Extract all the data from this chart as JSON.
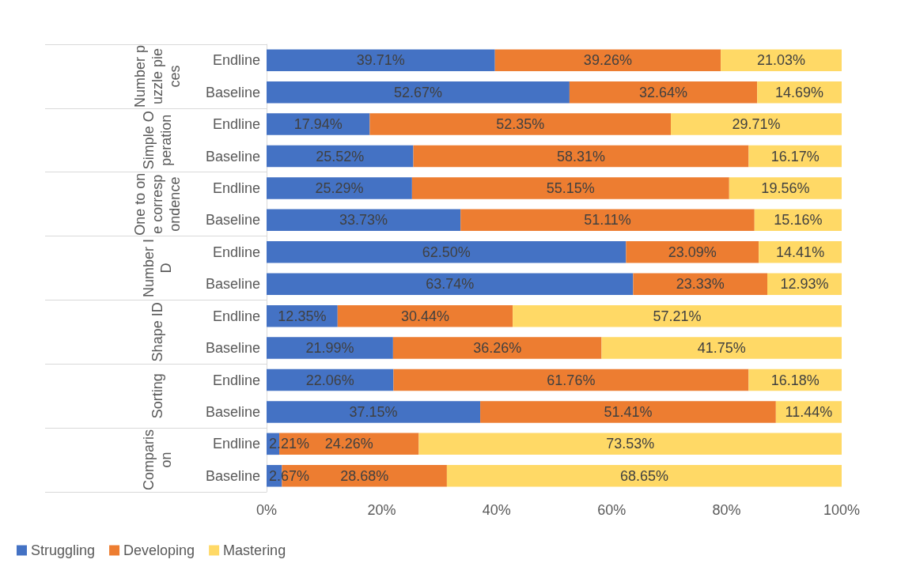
{
  "chart_data": {
    "type": "bar",
    "orientation": "horizontal",
    "stacked": true,
    "categories": [
      "Endline",
      "Baseline",
      "Endline",
      "Baseline",
      "Endline",
      "Baseline",
      "Endline",
      "Baseline",
      "Endline",
      "Baseline",
      "Endline",
      "Baseline",
      "Endline",
      "Baseline"
    ],
    "annotations": [
      "Number puzzle pieces",
      "Simple Operation",
      "One to one correspondence",
      "Number ID",
      "Shape ID",
      "Sorting",
      "Comparison"
    ],
    "series": [
      {
        "name": "Struggling",
        "color": "#4472c4",
        "values": [
          39.71,
          52.67,
          17.94,
          25.52,
          25.29,
          33.73,
          62.5,
          63.74,
          12.35,
          21.99,
          22.06,
          37.15,
          2.21,
          2.67
        ],
        "value_labels": [
          "39.71%",
          "52.67%",
          "17.94%",
          "25.52%",
          "25.29%",
          "33.73%",
          "62.50%",
          "63.74%",
          "12.35%",
          "21.99%",
          "22.06%",
          "37.15%",
          "2.21%",
          "2.67%"
        ]
      },
      {
        "name": "Developing",
        "color": "#ed7d31",
        "values": [
          39.26,
          32.64,
          52.35,
          58.31,
          55.15,
          51.11,
          23.09,
          23.33,
          30.44,
          36.26,
          61.76,
          51.41,
          24.26,
          28.68
        ],
        "value_labels": [
          "39.26%",
          "32.64%",
          "52.35%",
          "58.31%",
          "55.15%",
          "51.11%",
          "23.09%",
          "23.33%",
          "30.44%",
          "36.26%",
          "61.76%",
          "51.41%",
          "24.26%",
          "28.68%"
        ]
      },
      {
        "name": "Mastering",
        "color": "#ffd966",
        "values": [
          21.03,
          14.69,
          29.71,
          16.17,
          19.56,
          15.16,
          14.41,
          12.93,
          57.21,
          41.75,
          16.18,
          11.44,
          73.53,
          68.65
        ],
        "value_labels": [
          "21.03%",
          "14.69%",
          "29.71%",
          "16.17%",
          "19.56%",
          "15.16%",
          "14.41%",
          "12.93%",
          "57.21%",
          "41.75%",
          "16.18%",
          "11.44%",
          "73.53%",
          "68.65%"
        ]
      }
    ],
    "xlim": [
      0,
      100
    ],
    "xticks": [
      {
        "value": 0,
        "label": "0%"
      },
      {
        "value": 20,
        "label": "20%"
      },
      {
        "value": 40,
        "label": "40%"
      },
      {
        "value": 60,
        "label": "60%"
      },
      {
        "value": 80,
        "label": "80%"
      },
      {
        "value": 100,
        "label": "100%"
      }
    ],
    "grid": false,
    "legend": "bottom left"
  }
}
